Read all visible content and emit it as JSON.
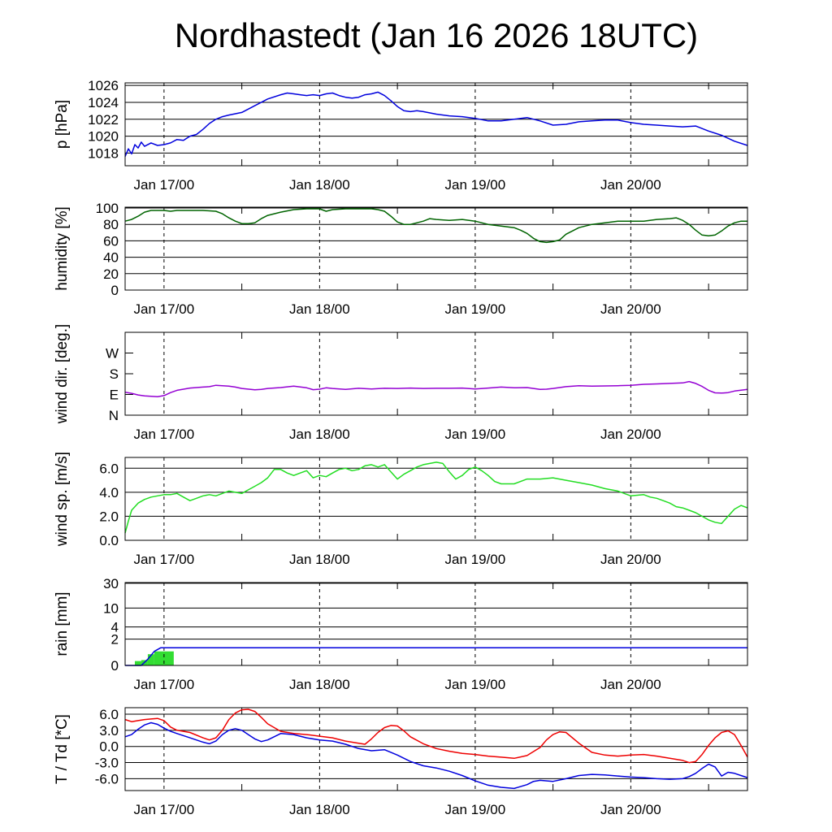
{
  "title": "Nordhastedt (Jan 16 2026 18UTC)",
  "colors": {
    "pressure": "#0000dd",
    "humidity": "#006400",
    "wind_dir": "#9400d3",
    "wind_sp": "#22dd22",
    "rain_line": "#0000dd",
    "rain_bar": "#33dd33",
    "temperature": "#ee0000",
    "dewpoint": "#0000dd"
  },
  "time_axis": {
    "range_hours": [
      0,
      96
    ],
    "tick_labels": [
      {
        "hour": 6,
        "label": "Jan 17/00"
      },
      {
        "hour": 30,
        "label": "Jan 18/00"
      },
      {
        "hour": 54,
        "label": "Jan 19/00"
      },
      {
        "hour": 78,
        "label": "Jan 20/00"
      }
    ],
    "minor_tick_hours": [
      18,
      42,
      66,
      90
    ]
  },
  "chart_data": [
    {
      "type": "line",
      "ylabel": "p [hPa]",
      "ylim": [
        1016.5,
        1026.3
      ],
      "ticks": [
        {
          "v": 1018,
          "label": "1018"
        },
        {
          "v": 1020,
          "label": "1020"
        },
        {
          "v": 1022,
          "label": "1022"
        },
        {
          "v": 1024,
          "label": "1024"
        },
        {
          "v": 1026,
          "label": "1026"
        }
      ],
      "grid": true,
      "series": [
        {
          "color_key": "pressure",
          "x": [
            0,
            0.5,
            1,
            1.5,
            2,
            2.5,
            3,
            4,
            5,
            6,
            7,
            8,
            9,
            10,
            11,
            12,
            13,
            14,
            15,
            16,
            18,
            20,
            21,
            22,
            24,
            25,
            26,
            27,
            28,
            29,
            30,
            31,
            32,
            33,
            34,
            35,
            36,
            37,
            38,
            39,
            40,
            41,
            42,
            43,
            44,
            45,
            46,
            48,
            50,
            52,
            54,
            56,
            58,
            60,
            62,
            64,
            66,
            68,
            70,
            72,
            74,
            76,
            78,
            80,
            82,
            84,
            86,
            88,
            90,
            92,
            94,
            96
          ],
          "y": [
            1017.6,
            1018.5,
            1017.9,
            1019.0,
            1018.6,
            1019.3,
            1018.8,
            1019.2,
            1018.9,
            1019.0,
            1019.2,
            1019.6,
            1019.5,
            1020.0,
            1020.2,
            1020.8,
            1021.5,
            1022.0,
            1022.3,
            1022.5,
            1022.8,
            1023.6,
            1024.0,
            1024.4,
            1024.9,
            1025.1,
            1025.0,
            1024.9,
            1024.8,
            1024.9,
            1024.8,
            1025.0,
            1025.1,
            1024.8,
            1024.6,
            1024.5,
            1024.6,
            1024.9,
            1025.0,
            1025.2,
            1024.8,
            1024.2,
            1023.5,
            1023.0,
            1022.9,
            1023.0,
            1022.9,
            1022.6,
            1022.4,
            1022.3,
            1022.1,
            1021.8,
            1021.8,
            1022.0,
            1022.2,
            1021.8,
            1021.3,
            1021.4,
            1021.7,
            1021.8,
            1021.9,
            1021.9,
            1021.6,
            1021.4,
            1021.3,
            1021.2,
            1021.1,
            1021.2,
            1020.6,
            1020.1,
            1019.4,
            1018.9
          ]
        }
      ]
    },
    {
      "type": "line",
      "ylabel": "humidity [%]",
      "ylim": [
        0,
        101
      ],
      "ticks": [
        {
          "v": 0,
          "label": "0"
        },
        {
          "v": 20,
          "label": "20"
        },
        {
          "v": 40,
          "label": "40"
        },
        {
          "v": 60,
          "label": "60"
        },
        {
          "v": 80,
          "label": "80"
        },
        {
          "v": 100,
          "label": "100"
        }
      ],
      "grid": true,
      "series": [
        {
          "color_key": "humidity",
          "x": [
            0,
            1,
            2,
            3,
            4,
            5,
            6,
            7,
            8,
            10,
            12,
            14,
            15,
            16,
            17,
            18,
            19,
            20,
            21,
            22,
            24,
            26,
            28,
            30,
            31,
            32,
            34,
            36,
            38,
            39,
            40,
            41,
            42,
            43,
            44,
            46,
            47,
            48,
            50,
            52,
            54,
            56,
            58,
            60,
            61,
            62,
            63,
            64,
            65,
            66,
            67,
            68,
            70,
            72,
            74,
            76,
            78,
            80,
            82,
            84,
            85,
            86,
            87,
            88,
            89,
            90,
            91,
            92,
            93,
            94,
            95,
            96
          ],
          "y": [
            84,
            86,
            90,
            95,
            97,
            97,
            97,
            96,
            97,
            97,
            97,
            96,
            93,
            88,
            84,
            81,
            81,
            82,
            87,
            91,
            95,
            98,
            99,
            99,
            96,
            98,
            99,
            99,
            99,
            98,
            96,
            90,
            83,
            80,
            80,
            84,
            87,
            86,
            85,
            86,
            84,
            80,
            78,
            76,
            73,
            69,
            63,
            59,
            58,
            59,
            61,
            68,
            76,
            80,
            82,
            84,
            84,
            84,
            86,
            87,
            88,
            85,
            80,
            73,
            67,
            66,
            67,
            72,
            78,
            82,
            84,
            84
          ]
        }
      ]
    },
    {
      "type": "line",
      "ylabel": "wind dir. [deg.]",
      "ylim": [
        0,
        360
      ],
      "ticks": [
        {
          "v": 0,
          "label": "N"
        },
        {
          "v": 90,
          "label": "E"
        },
        {
          "v": 180,
          "label": "S"
        },
        {
          "v": 270,
          "label": "W"
        }
      ],
      "grid": false,
      "series": [
        {
          "color_key": "wind_dir",
          "x": [
            0,
            1,
            2,
            3,
            4,
            5,
            6,
            7,
            8,
            10,
            12,
            13,
            14,
            16,
            17,
            18,
            20,
            21,
            22,
            24,
            26,
            28,
            29,
            30,
            31,
            32,
            34,
            36,
            38,
            40,
            42,
            44,
            46,
            48,
            50,
            52,
            54,
            56,
            58,
            60,
            62,
            64,
            65,
            66,
            68,
            70,
            72,
            74,
            76,
            78,
            80,
            82,
            84,
            86,
            87,
            88,
            89,
            90,
            91,
            92,
            93,
            94,
            96
          ],
          "y": [
            100,
            95,
            88,
            84,
            82,
            80,
            85,
            98,
            108,
            118,
            122,
            124,
            130,
            126,
            122,
            116,
            110,
            112,
            116,
            120,
            126,
            119,
            111,
            113,
            119,
            116,
            112,
            117,
            114,
            117,
            116,
            118,
            116,
            117,
            117,
            118,
            114,
            118,
            122,
            119,
            120,
            112,
            113,
            116,
            124,
            128,
            126,
            127,
            128,
            130,
            134,
            136,
            138,
            140,
            146,
            138,
            125,
            108,
            97,
            96,
            98,
            105,
            112
          ]
        }
      ]
    },
    {
      "type": "line",
      "ylabel": "wind sp. [m/s]",
      "ylim": [
        0,
        6.9
      ],
      "ticks": [
        {
          "v": 0,
          "label": "0.0"
        },
        {
          "v": 2,
          "label": "2.0"
        },
        {
          "v": 4,
          "label": "4.0"
        },
        {
          "v": 6,
          "label": "6.0"
        }
      ],
      "grid": true,
      "series": [
        {
          "color_key": "wind_sp",
          "x": [
            0,
            0.5,
            1,
            2,
            3,
            4,
            5,
            6,
            7,
            8,
            9,
            10,
            11,
            12,
            13,
            14,
            15,
            16,
            17,
            18,
            19,
            20,
            21,
            22,
            23,
            24,
            25,
            26,
            27,
            28,
            29,
            30,
            31,
            32,
            33,
            34,
            35,
            36,
            37,
            38,
            39,
            40,
            41,
            42,
            43,
            44,
            45,
            46,
            47,
            48,
            49,
            50,
            51,
            52,
            53,
            54,
            55,
            56,
            57,
            58,
            60,
            62,
            64,
            66,
            68,
            70,
            72,
            74,
            76,
            78,
            80,
            81,
            82,
            83,
            84,
            85,
            86,
            87,
            88,
            89,
            90,
            91,
            92,
            93,
            94,
            95,
            96
          ],
          "y": [
            0.6,
            1.6,
            2.5,
            3.1,
            3.4,
            3.6,
            3.7,
            3.8,
            3.8,
            3.9,
            3.6,
            3.3,
            3.5,
            3.7,
            3.8,
            3.7,
            3.9,
            4.1,
            4.0,
            3.9,
            4.2,
            4.5,
            4.8,
            5.2,
            5.9,
            5.9,
            5.6,
            5.4,
            5.6,
            5.8,
            5.2,
            5.4,
            5.3,
            5.6,
            5.9,
            6.0,
            5.8,
            5.9,
            6.2,
            6.3,
            6.1,
            6.3,
            5.7,
            5.1,
            5.5,
            5.8,
            6.1,
            6.3,
            6.4,
            6.5,
            6.4,
            5.7,
            5.1,
            5.4,
            5.9,
            6.1,
            5.8,
            5.4,
            4.9,
            4.7,
            4.7,
            5.1,
            5.1,
            5.2,
            5.0,
            4.8,
            4.6,
            4.3,
            4.1,
            3.7,
            3.8,
            3.6,
            3.5,
            3.3,
            3.1,
            2.8,
            2.7,
            2.5,
            2.3,
            2.0,
            1.7,
            1.5,
            1.4,
            2.0,
            2.6,
            2.9,
            2.7
          ]
        }
      ]
    },
    {
      "type": "area",
      "ylabel": "rain [mm]",
      "scale": "log1p",
      "ylim": [
        0,
        31
      ],
      "ticks": [
        {
          "v": 0,
          "label": "0"
        },
        {
          "v": 2,
          "label": "2"
        },
        {
          "v": 4,
          "label": "4"
        },
        {
          "v": 10,
          "label": "10"
        },
        {
          "v": 30,
          "label": "30"
        }
      ],
      "grid": true,
      "bars": [
        {
          "x0": 1.5,
          "x1": 2.5,
          "value": 0.2
        },
        {
          "x0": 2.5,
          "x1": 3.5,
          "value": 0.25
        },
        {
          "x0": 3.5,
          "x1": 4.5,
          "value": 0.6
        },
        {
          "x0": 4.5,
          "x1": 7.5,
          "value": 0.8
        }
      ],
      "series": [
        {
          "color_key": "rain_line",
          "x": [
            0,
            1.5,
            2.5,
            3.5,
            4.5,
            5.5,
            96
          ],
          "y": [
            0,
            0,
            0,
            0.3,
            0.8,
            1.1,
            1.1
          ]
        }
      ]
    },
    {
      "type": "line",
      "ylabel": "T / Td [*C]",
      "ylim": [
        -8.2,
        7.2
      ],
      "ticks": [
        {
          "v": -6,
          "label": "-6.0"
        },
        {
          "v": -3,
          "label": "-3.0"
        },
        {
          "v": 0,
          "label": "0.0"
        },
        {
          "v": 3,
          "label": "3.0"
        },
        {
          "v": 6,
          "label": "6.0"
        }
      ],
      "grid": true,
      "series": [
        {
          "color_key": "temperature",
          "x": [
            0,
            1,
            2,
            3,
            4,
            5,
            6,
            7,
            8,
            10,
            12,
            13,
            14,
            15,
            16,
            17,
            18,
            19,
            20,
            21,
            22,
            24,
            26,
            28,
            30,
            32,
            34,
            36,
            37,
            38,
            39,
            40,
            41,
            42,
            43,
            44,
            46,
            48,
            50,
            52,
            54,
            56,
            58,
            60,
            62,
            64,
            65,
            66,
            67,
            68,
            70,
            72,
            74,
            76,
            78,
            80,
            82,
            84,
            86,
            87,
            88,
            89,
            90,
            91,
            92,
            93,
            94,
            95,
            96
          ],
          "y": [
            5.0,
            4.6,
            4.8,
            5.0,
            5.1,
            5.2,
            4.8,
            3.6,
            3.0,
            2.6,
            1.6,
            1.2,
            1.6,
            3.0,
            5.0,
            6.2,
            6.8,
            6.9,
            6.5,
            5.4,
            4.2,
            2.8,
            2.4,
            2.2,
            1.9,
            1.6,
            1.0,
            0.6,
            0.4,
            1.4,
            2.6,
            3.5,
            3.9,
            3.8,
            2.9,
            1.8,
            0.5,
            -0.4,
            -0.9,
            -1.3,
            -1.5,
            -1.8,
            -2.0,
            -2.2,
            -1.7,
            -0.2,
            1.2,
            2.2,
            2.7,
            2.6,
            0.6,
            -1.1,
            -1.6,
            -1.8,
            -1.6,
            -1.5,
            -1.8,
            -2.2,
            -2.6,
            -3.0,
            -2.8,
            -1.5,
            0.2,
            1.6,
            2.6,
            2.9,
            2.2,
            0.2,
            -2.0
          ],
          "name": ""
        },
        {
          "color_key": "dewpoint",
          "x": [
            0,
            1,
            2,
            3,
            4,
            5,
            6,
            7,
            8,
            10,
            12,
            13,
            14,
            15,
            16,
            17,
            18,
            19,
            20,
            21,
            22,
            24,
            26,
            28,
            30,
            32,
            34,
            36,
            38,
            40,
            42,
            44,
            46,
            48,
            50,
            52,
            54,
            56,
            58,
            60,
            62,
            63,
            64,
            66,
            68,
            70,
            72,
            74,
            76,
            78,
            80,
            82,
            84,
            86,
            87,
            88,
            89,
            90,
            91,
            92,
            93,
            94,
            95,
            96
          ],
          "y": [
            1.8,
            2.2,
            3.2,
            4.0,
            4.4,
            4.1,
            3.4,
            2.8,
            2.4,
            1.6,
            0.8,
            0.5,
            1.0,
            2.2,
            3.0,
            3.3,
            3.0,
            2.2,
            1.4,
            0.9,
            1.2,
            2.4,
            2.2,
            1.6,
            1.2,
            1.0,
            0.4,
            -0.4,
            -0.8,
            -0.6,
            -1.6,
            -2.8,
            -3.6,
            -4.0,
            -4.6,
            -5.4,
            -6.4,
            -7.2,
            -7.6,
            -7.8,
            -7.1,
            -6.5,
            -6.3,
            -6.5,
            -6.0,
            -5.4,
            -5.2,
            -5.3,
            -5.5,
            -5.7,
            -5.8,
            -6.0,
            -6.1,
            -6.0,
            -5.6,
            -5.0,
            -4.1,
            -3.3,
            -3.8,
            -5.5,
            -4.8,
            -5.0,
            -5.4,
            -5.8
          ]
        }
      ]
    }
  ]
}
